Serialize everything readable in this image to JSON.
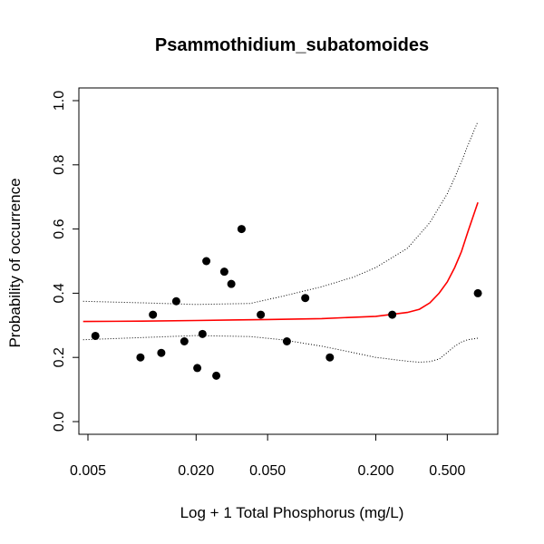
{
  "chart_data": {
    "type": "scatter",
    "title": "Psammothidium_subatomoides",
    "xlabel": "Log + 1 Total Phosphorus (mg/L)",
    "ylabel": "Probability of occurrence",
    "x_scale": "log",
    "xlim": [
      0.005,
      0.85
    ],
    "ylim": [
      0.0,
      1.0
    ],
    "x_ticks": [
      0.005,
      0.02,
      0.05,
      0.2,
      0.5
    ],
    "x_tick_labels": [
      "0.005",
      "0.020",
      "0.050",
      "0.200",
      "0.500"
    ],
    "y_ticks": [
      0.0,
      0.2,
      0.4,
      0.6,
      0.8,
      1.0
    ],
    "y_tick_labels": [
      "0.0",
      "0.2",
      "0.4",
      "0.6",
      "0.8",
      "1.0"
    ],
    "colors": {
      "points": "#000000",
      "fit": "#ff0000",
      "ci": "#000000"
    },
    "points": [
      {
        "x": 0.0055,
        "y": 0.267
      },
      {
        "x": 0.0098,
        "y": 0.2
      },
      {
        "x": 0.0115,
        "y": 0.333
      },
      {
        "x": 0.0128,
        "y": 0.214
      },
      {
        "x": 0.0155,
        "y": 0.375
      },
      {
        "x": 0.0172,
        "y": 0.25
      },
      {
        "x": 0.0203,
        "y": 0.167
      },
      {
        "x": 0.0217,
        "y": 0.273
      },
      {
        "x": 0.0228,
        "y": 0.5
      },
      {
        "x": 0.0259,
        "y": 0.143
      },
      {
        "x": 0.0287,
        "y": 0.467
      },
      {
        "x": 0.0314,
        "y": 0.429
      },
      {
        "x": 0.0358,
        "y": 0.6
      },
      {
        "x": 0.0458,
        "y": 0.333
      },
      {
        "x": 0.064,
        "y": 0.25
      },
      {
        "x": 0.081,
        "y": 0.385
      },
      {
        "x": 0.111,
        "y": 0.2
      },
      {
        "x": 0.247,
        "y": 0.333
      },
      {
        "x": 0.74,
        "y": 0.4
      }
    ],
    "series": [
      {
        "style": "solid",
        "x": [
          0.0047,
          0.01,
          0.02,
          0.05,
          0.1,
          0.2,
          0.3,
          0.35,
          0.4,
          0.45,
          0.5,
          0.55,
          0.6,
          0.65,
          0.74
        ],
        "values": [
          0.312,
          0.313,
          0.315,
          0.318,
          0.321,
          0.328,
          0.34,
          0.35,
          0.37,
          0.4,
          0.435,
          0.48,
          0.53,
          0.59,
          0.683
        ]
      },
      {
        "style": "dotted",
        "x": [
          0.0047,
          0.01,
          0.02,
          0.04,
          0.06,
          0.1,
          0.15,
          0.2,
          0.3,
          0.4,
          0.5,
          0.55,
          0.6,
          0.65,
          0.74
        ],
        "values": [
          0.375,
          0.37,
          0.365,
          0.368,
          0.39,
          0.42,
          0.45,
          0.48,
          0.54,
          0.62,
          0.71,
          0.76,
          0.81,
          0.86,
          0.935
        ]
      },
      {
        "style": "dotted",
        "x": [
          0.0047,
          0.01,
          0.02,
          0.04,
          0.06,
          0.1,
          0.15,
          0.2,
          0.3,
          0.35,
          0.4,
          0.45,
          0.5,
          0.55,
          0.6,
          0.65,
          0.74
        ],
        "values": [
          0.255,
          0.262,
          0.268,
          0.265,
          0.255,
          0.235,
          0.215,
          0.2,
          0.188,
          0.185,
          0.187,
          0.195,
          0.215,
          0.235,
          0.248,
          0.255,
          0.26
        ]
      }
    ]
  }
}
